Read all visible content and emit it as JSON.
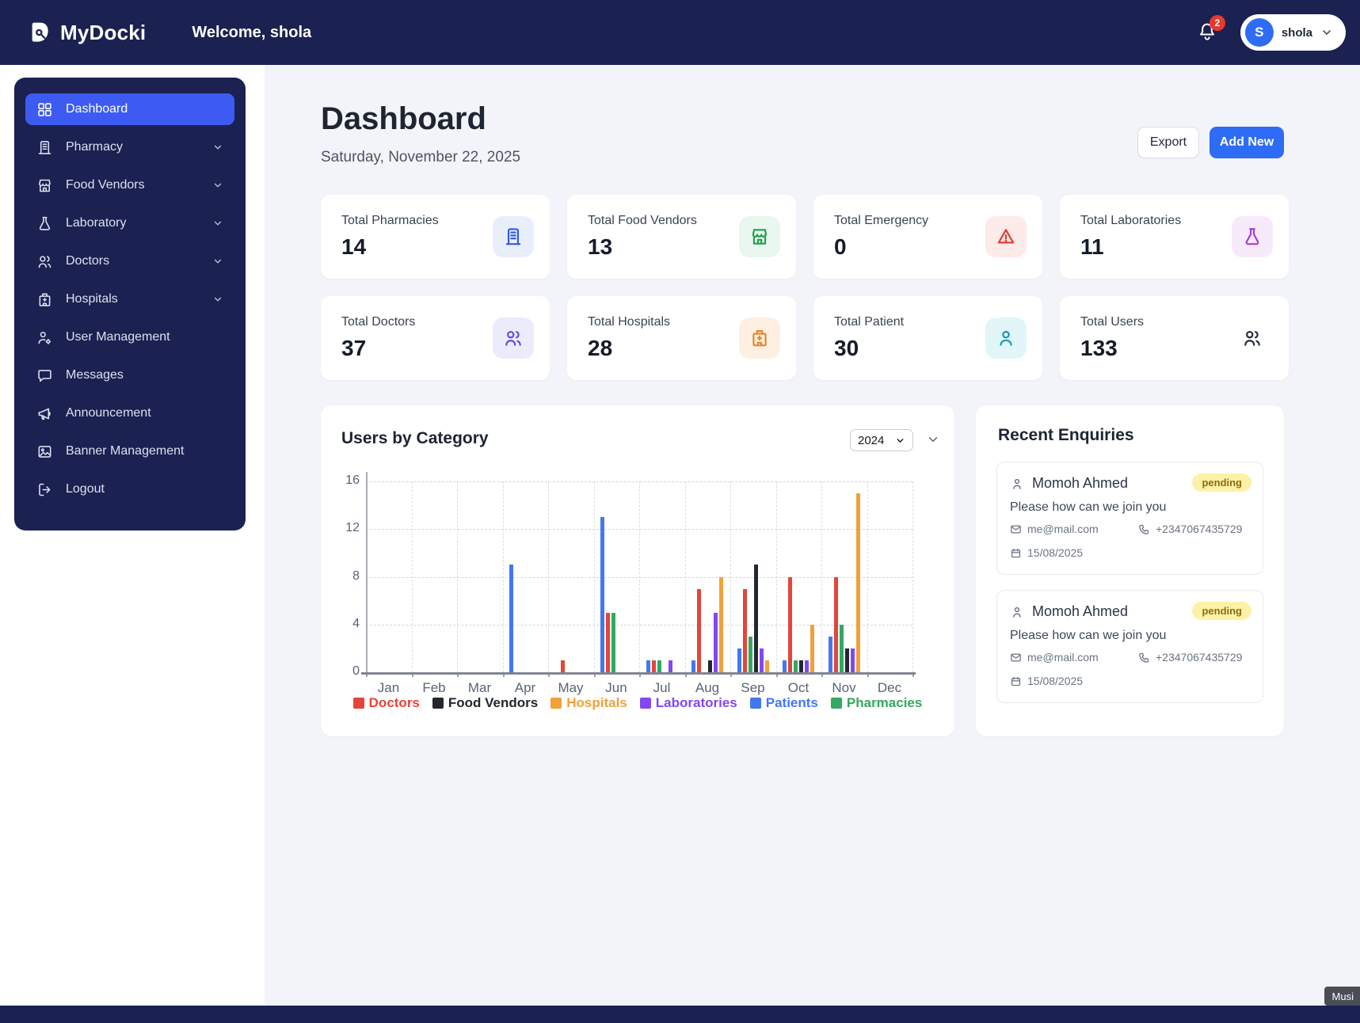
{
  "topbar": {
    "brand": "MyDocki",
    "welcome": "Welcome, shola",
    "notification_count": "2",
    "user_initial": "S",
    "user_name": "shola"
  },
  "sidebar": {
    "items": [
      {
        "label": "Dashboard",
        "active": true,
        "has_submenu": false
      },
      {
        "label": "Pharmacy",
        "active": false,
        "has_submenu": true
      },
      {
        "label": "Food Vendors",
        "active": false,
        "has_submenu": true
      },
      {
        "label": "Laboratory",
        "active": false,
        "has_submenu": true
      },
      {
        "label": "Doctors",
        "active": false,
        "has_submenu": true
      },
      {
        "label": "Hospitals",
        "active": false,
        "has_submenu": true
      },
      {
        "label": "User Management",
        "active": false,
        "has_submenu": false
      },
      {
        "label": "Messages",
        "active": false,
        "has_submenu": false
      },
      {
        "label": "Announcement",
        "active": false,
        "has_submenu": false
      },
      {
        "label": "Banner Management",
        "active": false,
        "has_submenu": false
      },
      {
        "label": "Logout",
        "active": false,
        "has_submenu": false
      }
    ]
  },
  "header": {
    "title": "Dashboard",
    "date": "Saturday, November 22, 2025",
    "export_label": "Export",
    "add_new_label": "Add New"
  },
  "stats": [
    {
      "label": "Total Pharmacies",
      "value": "14",
      "icon": "pharmacy-icon",
      "icon_color": "#2D5BE8",
      "icon_bg": "#E9EEFB"
    },
    {
      "label": "Total Food Vendors",
      "value": "13",
      "icon": "store-icon",
      "icon_color": "#1FA04C",
      "icon_bg": "#E9F7EF"
    },
    {
      "label": "Total Emergency",
      "value": "0",
      "icon": "warning-icon",
      "icon_color": "#E03C31",
      "icon_bg": "#FCEBE9"
    },
    {
      "label": "Total Laboratories",
      "value": "11",
      "icon": "flask-icon",
      "icon_color": "#A93BD8",
      "icon_bg": "#F7EBFB"
    },
    {
      "label": "Total Doctors",
      "value": "37",
      "icon": "doctors-icon",
      "icon_color": "#5A4FE0",
      "icon_bg": "#ECEBFB"
    },
    {
      "label": "Total Hospitals",
      "value": "28",
      "icon": "hospital-icon",
      "icon_color": "#E8842C",
      "icon_bg": "#FDF0E2"
    },
    {
      "label": "Total Patient",
      "value": "30",
      "icon": "person-icon",
      "icon_color": "#1898B4",
      "icon_bg": "#E2F6FA"
    },
    {
      "label": "Total Users",
      "value": "133",
      "icon": "people-icon",
      "icon_color": "#232A39",
      "icon_bg": "#FFFFFF"
    }
  ],
  "chart_card": {
    "title": "Users by Category",
    "year_selected": "2024"
  },
  "chart_data": {
    "type": "bar",
    "title": "Users by Category",
    "categories": [
      "Jan",
      "Feb",
      "Mar",
      "Apr",
      "May",
      "Jun",
      "Jul",
      "Aug",
      "Sep",
      "Oct",
      "Nov",
      "Dec"
    ],
    "ylim": [
      0,
      16
    ],
    "yticks": [
      0,
      4,
      8,
      12,
      16
    ],
    "grid": true,
    "legend_position": "bottom",
    "legend_order": [
      "Doctors",
      "Food Vendors",
      "Hospitals",
      "Laboratories",
      "Patients",
      "Pharmacies"
    ],
    "series": [
      {
        "name": "Patients",
        "color": "#4377F2",
        "values": [
          0,
          0,
          0,
          9,
          0,
          13,
          1,
          1,
          2,
          1,
          3,
          0
        ]
      },
      {
        "name": "Doctors",
        "color": "#E4453A",
        "values": [
          0,
          0,
          0,
          0,
          1,
          5,
          1,
          7,
          7,
          8,
          8,
          0
        ]
      },
      {
        "name": "Pharmacies",
        "color": "#34A860",
        "values": [
          0,
          0,
          0,
          0,
          0,
          5,
          1,
          0,
          3,
          1,
          4,
          0
        ]
      },
      {
        "name": "Food Vendors",
        "color": "#23272F",
        "values": [
          0,
          0,
          0,
          0,
          0,
          0,
          0,
          1,
          9,
          1,
          2,
          0
        ]
      },
      {
        "name": "Laboratories",
        "color": "#8247F5",
        "values": [
          0,
          0,
          0,
          0,
          0,
          0,
          1,
          5,
          2,
          1,
          2,
          0
        ]
      },
      {
        "name": "Hospitals",
        "color": "#F0A13A",
        "values": [
          0,
          0,
          0,
          0,
          0,
          0,
          0,
          8,
          1,
          4,
          15,
          0
        ]
      }
    ]
  },
  "enquiries": {
    "title": "Recent Enquiries",
    "items": [
      {
        "name": "Momoh Ahmed",
        "status": "pending",
        "message": "Please how can we join you",
        "email": "me@mail.com",
        "phone": "+2347067435729",
        "date": "15/08/2025"
      },
      {
        "name": "Momoh Ahmed",
        "status": "pending",
        "message": "Please how can we join you",
        "email": "me@mail.com",
        "phone": "+2347067435729",
        "date": "15/08/2025"
      }
    ]
  },
  "misc": {
    "tooltip": "Musi"
  }
}
